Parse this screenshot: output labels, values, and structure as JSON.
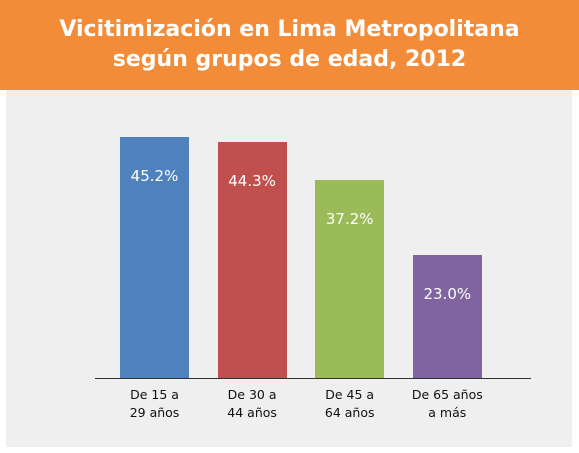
{
  "chart_data": {
    "type": "bar",
    "title": "Vicitimización en Lima Metropolitana\nsegún grupos de edad, 2012",
    "categories": [
      "De 15 a\n29 años",
      "De 30 a\n44 años",
      "De 45 a\n64 años",
      "De 65 años\na más"
    ],
    "values": [
      45.2,
      44.3,
      37.2,
      23.0
    ],
    "value_labels": [
      "45.2%",
      "44.3%",
      "37.2%",
      "23.0%"
    ],
    "colors": [
      "#4f81bd",
      "#c0504d",
      "#9bbb59",
      "#8064a2"
    ]
  }
}
